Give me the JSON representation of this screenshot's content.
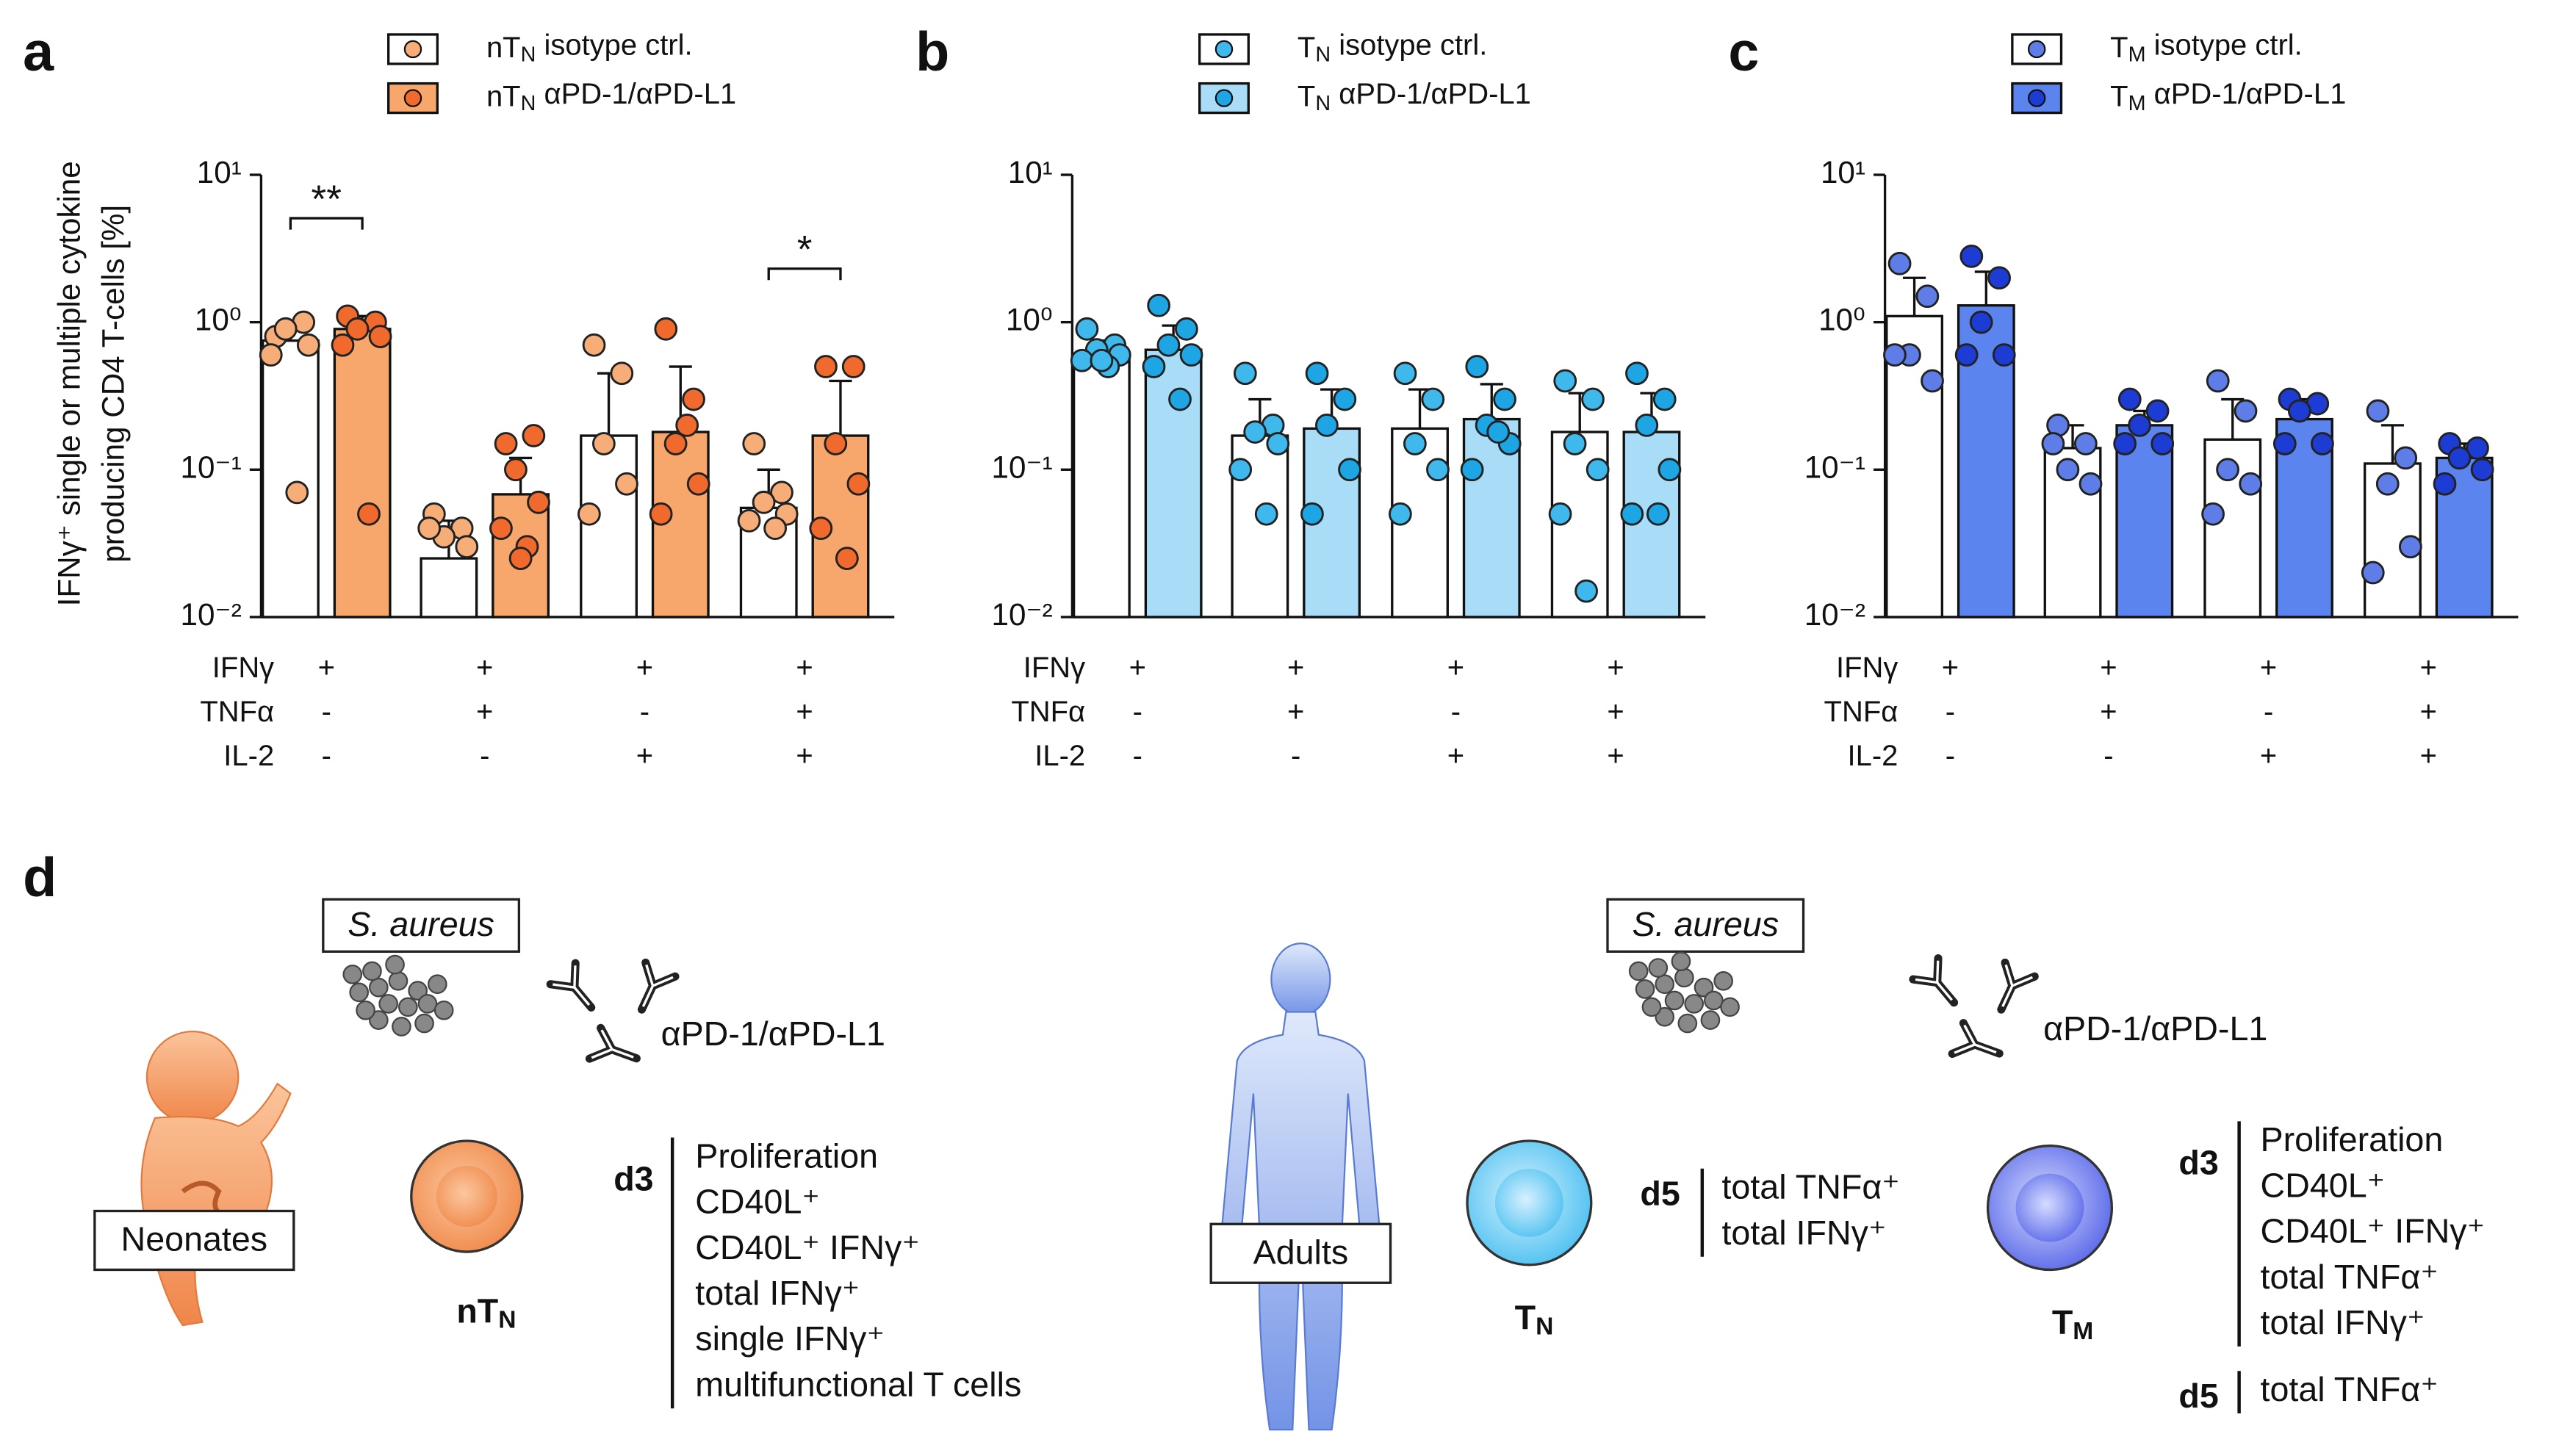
{
  "chart_data": [
    {
      "type": "bar",
      "label": "a",
      "log_scale": true,
      "ylabel": [
        "IFNγ⁺ single or multiple cytokine",
        "producing CD4 T-cells [%]"
      ],
      "ylim": [
        0.01,
        10
      ],
      "yticks": [
        {
          "value": 0.01,
          "label": "10⁻²"
        },
        {
          "value": 0.1,
          "label": "10⁻¹"
        },
        {
          "value": 1,
          "label": "10⁰"
        },
        {
          "value": 10,
          "label": "10¹"
        }
      ],
      "conditions": [
        {
          "name": "IFNγ",
          "values": [
            "+",
            "+",
            "+",
            "+"
          ]
        },
        {
          "name": "TNFα",
          "values": [
            "-",
            "+",
            "-",
            "+"
          ]
        },
        {
          "name": "IL-2",
          "values": [
            "-",
            "-",
            "+",
            "+"
          ]
        }
      ],
      "significance": [
        "**",
        null,
        null,
        "*"
      ],
      "series": [
        {
          "name": "nT_N isotype ctrl.",
          "color": "#ffffff",
          "point_color": "#f7ad78",
          "values": [
            0.75,
            0.025,
            0.17,
            0.055
          ],
          "errors": [
            0.2,
            0.02,
            0.28,
            0.045
          ],
          "points": [
            [
              0.8,
              1.0,
              0.9,
              0.7,
              0.6,
              0.07
            ],
            [
              0.05,
              0.04,
              0.035,
              0.03,
              0.04
            ],
            [
              0.7,
              0.45,
              0.15,
              0.08,
              0.05
            ],
            [
              0.15,
              0.07,
              0.06,
              0.05,
              0.045,
              0.04
            ]
          ]
        },
        {
          "name": "nT_N αPD-1/αPD-L1",
          "color": "#f7a66c",
          "point_color": "#ef6a2c",
          "values": [
            0.9,
            0.068,
            0.18,
            0.17
          ],
          "errors": [
            0.2,
            0.052,
            0.32,
            0.23
          ],
          "points": [
            [
              1.1,
              1.0,
              0.9,
              0.8,
              0.7,
              0.05
            ],
            [
              0.15,
              0.17,
              0.1,
              0.06,
              0.04,
              0.03,
              0.025
            ],
            [
              0.9,
              0.3,
              0.15,
              0.08,
              0.05,
              0.2
            ],
            [
              0.5,
              0.5,
              0.15,
              0.08,
              0.04,
              0.025
            ]
          ]
        }
      ]
    },
    {
      "type": "bar",
      "label": "b",
      "log_scale": true,
      "ylim": [
        0.01,
        10
      ],
      "yticks": [
        {
          "value": 0.01,
          "label": "10⁻²"
        },
        {
          "value": 0.1,
          "label": "10⁻¹"
        },
        {
          "value": 1,
          "label": "10⁰"
        },
        {
          "value": 10,
          "label": "10¹"
        }
      ],
      "conditions": [
        {
          "name": "IFNγ",
          "values": [
            "+",
            "+",
            "+",
            "+"
          ]
        },
        {
          "name": "TNFα",
          "values": [
            "-",
            "+",
            "-",
            "+"
          ]
        },
        {
          "name": "IL-2",
          "values": [
            "-",
            "-",
            "+",
            "+"
          ]
        }
      ],
      "series": [
        {
          "name": "T_N isotype ctrl.",
          "color": "#ffffff",
          "point_color": "#3fb8ec",
          "values": [
            0.6,
            0.17,
            0.19,
            0.18
          ],
          "errors": [
            0.15,
            0.13,
            0.16,
            0.15
          ],
          "points": [
            [
              0.9,
              0.7,
              0.65,
              0.6,
              0.55,
              0.5,
              0.55
            ],
            [
              0.45,
              0.2,
              0.18,
              0.15,
              0.1,
              0.05
            ],
            [
              0.45,
              0.3,
              0.15,
              0.1,
              0.05
            ],
            [
              0.4,
              0.3,
              0.15,
              0.1,
              0.05,
              0.015
            ]
          ]
        },
        {
          "name": "T_N αPD-1/αPD-L1",
          "color": "#a9dcf6",
          "point_color": "#1ea6e4",
          "values": [
            0.65,
            0.19,
            0.22,
            0.18
          ],
          "errors": [
            0.3,
            0.16,
            0.16,
            0.15
          ],
          "points": [
            [
              1.3,
              0.9,
              0.7,
              0.6,
              0.5,
              0.3
            ],
            [
              0.45,
              0.3,
              0.2,
              0.1,
              0.05
            ],
            [
              0.5,
              0.3,
              0.2,
              0.15,
              0.1,
              0.18
            ],
            [
              0.45,
              0.3,
              0.2,
              0.1,
              0.05,
              0.05
            ]
          ]
        }
      ]
    },
    {
      "type": "bar",
      "label": "c",
      "log_scale": true,
      "ylim": [
        0.01,
        10
      ],
      "yticks": [
        {
          "value": 0.01,
          "label": "10⁻²"
        },
        {
          "value": 0.1,
          "label": "10⁻¹"
        },
        {
          "value": 1,
          "label": "10⁰"
        },
        {
          "value": 10,
          "label": "10¹"
        }
      ],
      "conditions": [
        {
          "name": "IFNγ",
          "values": [
            "+",
            "+",
            "+",
            "+"
          ]
        },
        {
          "name": "TNFα",
          "values": [
            "-",
            "+",
            "-",
            "+"
          ]
        },
        {
          "name": "IL-2",
          "values": [
            "-",
            "-",
            "+",
            "+"
          ]
        }
      ],
      "series": [
        {
          "name": "T_M isotype ctrl.",
          "color": "#ffffff",
          "point_color": "#5f7de6",
          "values": [
            1.1,
            0.14,
            0.16,
            0.11
          ],
          "errors": [
            0.9,
            0.06,
            0.14,
            0.09
          ],
          "points": [
            [
              2.5,
              1.5,
              0.6,
              0.4,
              0.6
            ],
            [
              0.2,
              0.15,
              0.1,
              0.08,
              0.15
            ],
            [
              0.4,
              0.25,
              0.1,
              0.08,
              0.05
            ],
            [
              0.25,
              0.12,
              0.08,
              0.03,
              0.02
            ]
          ]
        },
        {
          "name": "T_M αPD-1/αPD-L1",
          "color": "#5b84ee",
          "point_color": "#1d3cd4",
          "values": [
            1.3,
            0.2,
            0.22,
            0.12
          ],
          "errors": [
            0.9,
            0.05,
            0.08,
            0.03
          ],
          "points": [
            [
              2.8,
              2.0,
              1.0,
              0.6,
              0.6
            ],
            [
              0.3,
              0.25,
              0.2,
              0.15,
              0.15
            ],
            [
              0.3,
              0.28,
              0.25,
              0.15,
              0.15
            ],
            [
              0.15,
              0.14,
              0.12,
              0.1,
              0.08
            ]
          ]
        }
      ]
    }
  ],
  "diagram": {
    "label": "d",
    "left": {
      "stimulus": "S. aureus",
      "antibody": "αPD-1/αPD-L1",
      "group": "Neonates",
      "cells": [
        {
          "cell": "nT_N",
          "timepoints": [
            {
              "day": "d3",
              "readouts": [
                "Proliferation",
                "CD40L⁺",
                "CD40L⁺ IFNγ⁺",
                "total IFNγ⁺",
                "single IFNγ⁺",
                "multifunctional T cells"
              ]
            }
          ]
        }
      ]
    },
    "right": {
      "stimulus": "S. aureus",
      "antibody": "αPD-1/αPD-L1",
      "group": "Adults",
      "cells": [
        {
          "cell": "T_N",
          "timepoints": [
            {
              "day": "d5",
              "readouts": [
                "total TNFα⁺",
                "total IFNγ⁺"
              ]
            }
          ]
        },
        {
          "cell": "T_M",
          "timepoints": [
            {
              "day": "d3",
              "readouts": [
                "Proliferation",
                "CD40L⁺",
                "CD40L⁺ IFNγ⁺",
                "total TNFα⁺",
                "total IFNγ⁺"
              ]
            },
            {
              "day": "d5",
              "readouts": [
                "total TNFα⁺"
              ]
            }
          ]
        }
      ]
    }
  }
}
